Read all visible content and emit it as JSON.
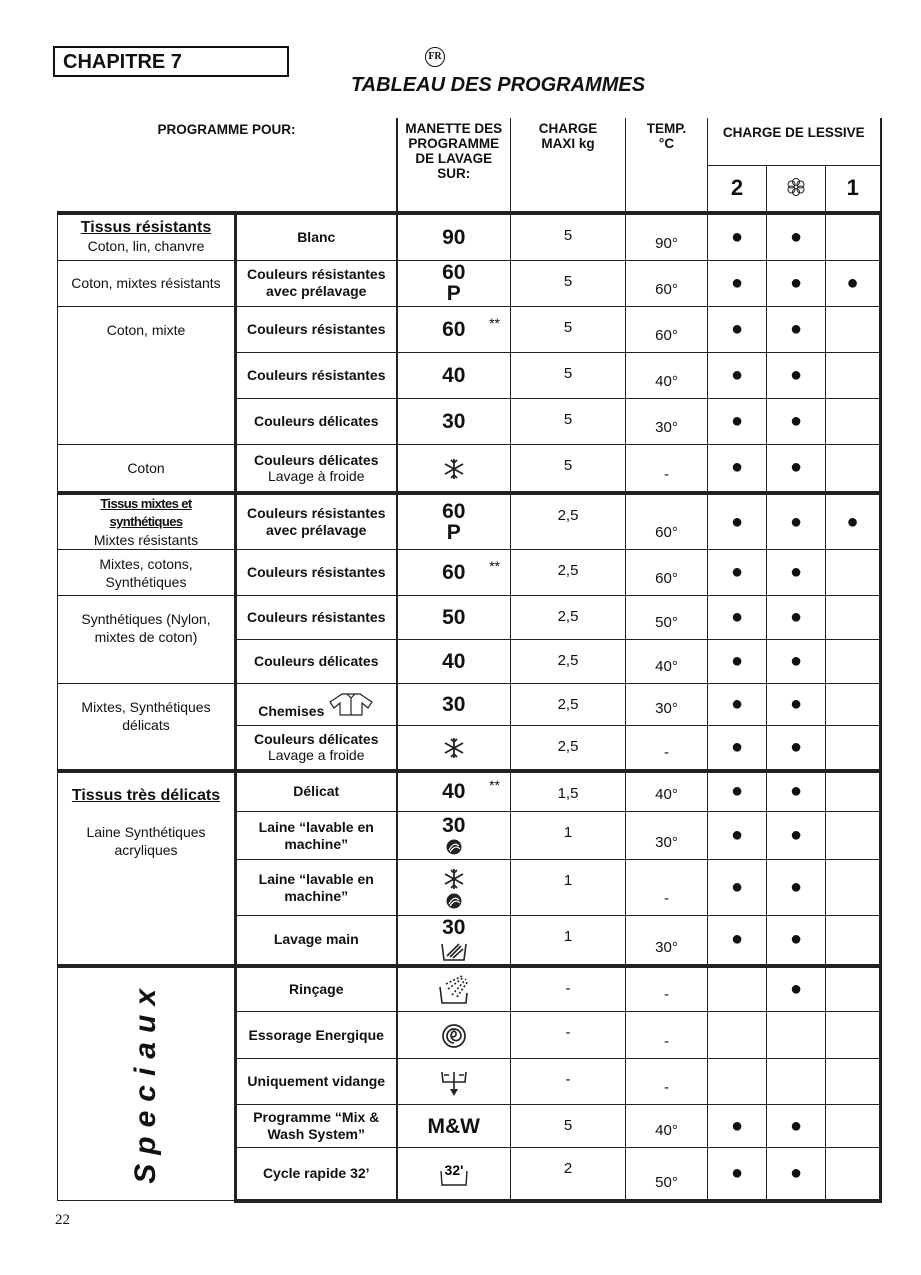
{
  "header": {
    "chapter": "CHAPITRE 7",
    "lang_badge": "FR",
    "title": "TABLEAU DES PROGRAMMES"
  },
  "columns": {
    "programme_pour": "PROGRAMME POUR:",
    "manette": "MANETTE DES PROGRAMME DE LAVAGE SUR:",
    "charge": "CHARGE MAXI kg",
    "temp": "TEMP. °C",
    "lessive": "CHARGE DE LESSIVE",
    "lessive_sub": [
      "2",
      "flower-icon",
      "1"
    ]
  },
  "groups": [
    {
      "title": "Tissus résistants",
      "text": "Coton, lin, chanvre",
      "rows": 1,
      "first": true,
      "start": 0
    },
    {
      "title": "",
      "text": "Coton, mixtes résistants",
      "rows": 1,
      "start": 1
    },
    {
      "title": "",
      "text": "Coton, mixte",
      "rows": 3,
      "start": 2,
      "top": true
    },
    {
      "title": "",
      "text": "Coton",
      "rows": 1,
      "start": 5
    },
    {
      "title": "Tissus mixtes et synthétiques",
      "text": "Mixtes résistants",
      "rows": 1,
      "start": 6,
      "small": true
    },
    {
      "title": "",
      "text": "Mixtes, cotons, Synthétiques",
      "rows": 1,
      "start": 7
    },
    {
      "title": "",
      "text": "Synthétiques (Nylon, mixtes de coton)",
      "rows": 2,
      "start": 8,
      "top": true
    },
    {
      "title": "",
      "text": "Mixtes, Synthétiques délicats",
      "rows": 2,
      "start": 10,
      "top": true
    },
    {
      "title": "Tissus très délicats",
      "text": "Laine Synthétiques acryliques",
      "rows": 4,
      "start": 12,
      "top": true
    },
    {
      "title": "",
      "text": "Speciaux",
      "rows": 5,
      "start": 16,
      "vertical": true
    }
  ],
  "rows": [
    {
      "program": "Blanc",
      "sub": "",
      "knob": "90",
      "knob2": "",
      "icon": "",
      "stars": "",
      "charge": "5",
      "temp": "90°",
      "d": [
        "●",
        "●",
        ""
      ]
    },
    {
      "program": "Couleurs résistantes avec prélavage",
      "sub": "",
      "knob": "60",
      "knob2": "P",
      "icon": "",
      "stars": "",
      "charge": "5",
      "temp": "60°",
      "d": [
        "●",
        "●",
        "●"
      ]
    },
    {
      "program": "Couleurs résistantes",
      "sub": "",
      "knob": "60",
      "knob2": "",
      "icon": "",
      "stars": "**",
      "charge": "5",
      "temp": "60°",
      "d": [
        "●",
        "●",
        ""
      ]
    },
    {
      "program": "Couleurs résistantes",
      "sub": "",
      "knob": "40",
      "knob2": "",
      "icon": "",
      "stars": "",
      "charge": "5",
      "temp": "40°",
      "d": [
        "●",
        "●",
        ""
      ]
    },
    {
      "program": "Couleurs délicates",
      "sub": "",
      "knob": "30",
      "knob2": "",
      "icon": "",
      "stars": "",
      "charge": "5",
      "temp": "30°",
      "d": [
        "●",
        "●",
        ""
      ]
    },
    {
      "program": "Couleurs délicates",
      "sub": "Lavage à froide",
      "knob": "",
      "knob2": "",
      "icon": "snowflake",
      "stars": "",
      "charge": "5",
      "temp": "-",
      "d": [
        "●",
        "●",
        ""
      ]
    },
    {
      "program": "Couleurs résistantes avec prélavage",
      "sub": "",
      "knob": "60",
      "knob2": "P",
      "icon": "",
      "stars": "",
      "charge": "2,5",
      "temp": "60°",
      "d": [
        "●",
        "●",
        "●"
      ]
    },
    {
      "program": "Couleurs résistantes",
      "sub": "",
      "knob": "60",
      "knob2": "",
      "icon": "",
      "stars": "**",
      "charge": "2,5",
      "temp": "60°",
      "d": [
        "●",
        "●",
        ""
      ]
    },
    {
      "program": "Couleurs résistantes",
      "sub": "",
      "knob": "50",
      "knob2": "",
      "icon": "",
      "stars": "",
      "charge": "2,5",
      "temp": "50°",
      "d": [
        "●",
        "●",
        ""
      ]
    },
    {
      "program": "Couleurs délicates",
      "sub": "",
      "knob": "40",
      "knob2": "",
      "icon": "",
      "stars": "",
      "charge": "2,5",
      "temp": "40°",
      "d": [
        "●",
        "●",
        ""
      ]
    },
    {
      "program": "Chemises",
      "sub": "",
      "progicon": "shirt",
      "knob": "30",
      "knob2": "",
      "icon": "",
      "stars": "",
      "charge": "2,5",
      "temp": "30°",
      "d": [
        "●",
        "●",
        ""
      ]
    },
    {
      "program": "Couleurs délicates",
      "sub": "Lavage a froide",
      "knob": "",
      "knob2": "",
      "icon": "snowflake",
      "stars": "",
      "charge": "2,5",
      "temp": "-",
      "d": [
        "●",
        "●",
        ""
      ]
    },
    {
      "program": "Délicat",
      "sub": "",
      "knob": "40",
      "knob2": "",
      "icon": "",
      "stars": "**",
      "charge": "1,5",
      "temp": "40°",
      "d": [
        "●",
        "●",
        ""
      ]
    },
    {
      "program": "Laine “lavable en machine”",
      "sub": "",
      "knob": "30",
      "knob2": "",
      "icon": "wool",
      "stars": "",
      "charge": "1",
      "temp": "30°",
      "d": [
        "●",
        "●",
        ""
      ]
    },
    {
      "program": "Laine “lavable en machine”",
      "sub": "",
      "knob": "",
      "knob2": "",
      "icon": "snowflake+wool",
      "stars": "",
      "charge": "1",
      "temp": "-",
      "d": [
        "●",
        "●",
        ""
      ]
    },
    {
      "program": "Lavage main",
      "sub": "",
      "knob": "30",
      "knob2": "",
      "icon": "handwash",
      "stars": "",
      "charge": "1",
      "temp": "30°",
      "d": [
        "●",
        "●",
        ""
      ]
    },
    {
      "program": "Rinçage",
      "sub": "",
      "knob": "",
      "knob2": "",
      "icon": "rinse",
      "stars": "",
      "charge": "-",
      "temp": "-",
      "d": [
        "",
        "●",
        ""
      ]
    },
    {
      "program": "Essorage Energique",
      "sub": "",
      "knob": "",
      "knob2": "",
      "icon": "spin",
      "stars": "",
      "charge": "-",
      "temp": "-",
      "d": [
        "",
        "",
        ""
      ]
    },
    {
      "program": "Uniquement vidange",
      "sub": "",
      "knob": "",
      "knob2": "",
      "icon": "drain",
      "stars": "",
      "charge": "-",
      "temp": "-",
      "d": [
        "",
        "",
        ""
      ]
    },
    {
      "program": "Programme “Mix & Wash System”",
      "sub": "",
      "knob": "M&W",
      "knob2": "",
      "icon": "",
      "stars": "",
      "charge": "5",
      "temp": "40°",
      "d": [
        "●",
        "●",
        ""
      ]
    },
    {
      "program": "Cycle rapide  32’",
      "sub": "",
      "knob": "",
      "knob2": "",
      "icon": "quick32",
      "icon_text": "32'",
      "stars": "",
      "charge": "2",
      "temp": "50°",
      "d": [
        "●",
        "●",
        ""
      ]
    }
  ],
  "footer": {
    "page_number": "22"
  }
}
